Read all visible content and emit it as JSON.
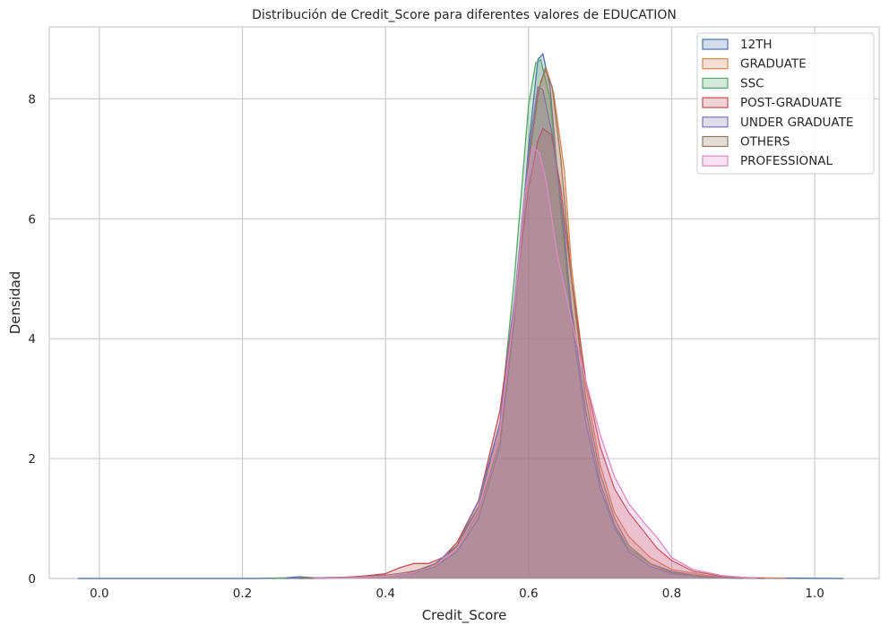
{
  "chart_data": {
    "type": "area",
    "title": "Distribución de Credit_Score para diferentes valores de EDUCATION",
    "xlabel": "Credit_Score",
    "ylabel": "Densidad",
    "xlim": [
      -0.07,
      1.09
    ],
    "ylim": [
      0,
      9.2
    ],
    "xticks": [
      0.0,
      0.2,
      0.4,
      0.6,
      0.8,
      1.0
    ],
    "xtick_labels": [
      "0.0",
      "0.2",
      "0.4",
      "0.6",
      "0.8",
      "1.0"
    ],
    "yticks": [
      0,
      2,
      4,
      6,
      8
    ],
    "ytick_labels": [
      "0",
      "2",
      "4",
      "6",
      "8"
    ],
    "grid": true,
    "legend_position": "top-right",
    "series": [
      {
        "name": "12TH",
        "color": "#4c72b0",
        "points": [
          [
            -0.03,
            0
          ],
          [
            0.22,
            0
          ],
          [
            0.26,
            0.01
          ],
          [
            0.28,
            0.03
          ],
          [
            0.3,
            0.01
          ],
          [
            0.34,
            0.01
          ],
          [
            0.38,
            0.05
          ],
          [
            0.41,
            0.06
          ],
          [
            0.44,
            0.09
          ],
          [
            0.47,
            0.2
          ],
          [
            0.5,
            0.45
          ],
          [
            0.53,
            1.0
          ],
          [
            0.56,
            2.2
          ],
          [
            0.58,
            4.3
          ],
          [
            0.6,
            7.2
          ],
          [
            0.613,
            8.65
          ],
          [
            0.62,
            8.75
          ],
          [
            0.63,
            8.2
          ],
          [
            0.64,
            6.8
          ],
          [
            0.66,
            4.5
          ],
          [
            0.68,
            2.8
          ],
          [
            0.7,
            1.6
          ],
          [
            0.72,
            0.9
          ],
          [
            0.74,
            0.5
          ],
          [
            0.77,
            0.25
          ],
          [
            0.8,
            0.12
          ],
          [
            0.84,
            0.04
          ],
          [
            0.9,
            0.01
          ],
          [
            1.04,
            0
          ]
        ]
      },
      {
        "name": "GRADUATE",
        "color": "#dd8452",
        "points": [
          [
            0.24,
            0
          ],
          [
            0.3,
            0.01
          ],
          [
            0.35,
            0.02
          ],
          [
            0.4,
            0.05
          ],
          [
            0.44,
            0.12
          ],
          [
            0.47,
            0.22
          ],
          [
            0.5,
            0.5
          ],
          [
            0.53,
            1.1
          ],
          [
            0.56,
            2.3
          ],
          [
            0.58,
            4.4
          ],
          [
            0.6,
            7.0
          ],
          [
            0.617,
            8.3
          ],
          [
            0.625,
            8.5
          ],
          [
            0.635,
            8.1
          ],
          [
            0.65,
            6.8
          ],
          [
            0.66,
            5.2
          ],
          [
            0.68,
            3.2
          ],
          [
            0.7,
            1.9
          ],
          [
            0.72,
            1.1
          ],
          [
            0.74,
            0.7
          ],
          [
            0.77,
            0.35
          ],
          [
            0.8,
            0.15
          ],
          [
            0.85,
            0.05
          ],
          [
            0.9,
            0.01
          ],
          [
            0.96,
            0
          ]
        ]
      },
      {
        "name": "SSC",
        "color": "#55a868",
        "points": [
          [
            0.24,
            0
          ],
          [
            0.3,
            0.01
          ],
          [
            0.36,
            0.02
          ],
          [
            0.4,
            0.05
          ],
          [
            0.44,
            0.12
          ],
          [
            0.47,
            0.25
          ],
          [
            0.5,
            0.55
          ],
          [
            0.53,
            1.2
          ],
          [
            0.56,
            2.6
          ],
          [
            0.58,
            5.0
          ],
          [
            0.6,
            7.9
          ],
          [
            0.61,
            8.6
          ],
          [
            0.617,
            8.65
          ],
          [
            0.63,
            8.0
          ],
          [
            0.64,
            6.8
          ],
          [
            0.66,
            4.3
          ],
          [
            0.68,
            2.6
          ],
          [
            0.7,
            1.5
          ],
          [
            0.72,
            0.85
          ],
          [
            0.74,
            0.5
          ],
          [
            0.77,
            0.25
          ],
          [
            0.8,
            0.1
          ],
          [
            0.85,
            0.03
          ],
          [
            0.92,
            0
          ]
        ]
      },
      {
        "name": "POST-GRADUATE",
        "color": "#c44e52",
        "points": [
          [
            0.28,
            0
          ],
          [
            0.33,
            0.01
          ],
          [
            0.37,
            0.04
          ],
          [
            0.4,
            0.08
          ],
          [
            0.42,
            0.18
          ],
          [
            0.44,
            0.25
          ],
          [
            0.46,
            0.25
          ],
          [
            0.48,
            0.35
          ],
          [
            0.5,
            0.6
          ],
          [
            0.53,
            1.3
          ],
          [
            0.56,
            2.8
          ],
          [
            0.58,
            4.6
          ],
          [
            0.6,
            6.5
          ],
          [
            0.613,
            7.3
          ],
          [
            0.62,
            7.5
          ],
          [
            0.632,
            7.4
          ],
          [
            0.645,
            6.5
          ],
          [
            0.66,
            5.0
          ],
          [
            0.68,
            3.3
          ],
          [
            0.7,
            2.2
          ],
          [
            0.72,
            1.5
          ],
          [
            0.74,
            1.1
          ],
          [
            0.76,
            0.8
          ],
          [
            0.78,
            0.5
          ],
          [
            0.8,
            0.3
          ],
          [
            0.83,
            0.12
          ],
          [
            0.87,
            0.04
          ],
          [
            0.93,
            0
          ]
        ]
      },
      {
        "name": "UNDER GRADUATE",
        "color": "#8172b3",
        "points": [
          [
            0.26,
            0
          ],
          [
            0.3,
            0.01
          ],
          [
            0.35,
            0.02
          ],
          [
            0.4,
            0.04
          ],
          [
            0.44,
            0.1
          ],
          [
            0.47,
            0.25
          ],
          [
            0.5,
            0.55
          ],
          [
            0.53,
            1.3
          ],
          [
            0.56,
            2.6
          ],
          [
            0.58,
            4.6
          ],
          [
            0.6,
            7.1
          ],
          [
            0.613,
            8.2
          ],
          [
            0.62,
            8.15
          ],
          [
            0.635,
            7.3
          ],
          [
            0.65,
            5.8
          ],
          [
            0.66,
            4.4
          ],
          [
            0.68,
            2.6
          ],
          [
            0.7,
            1.5
          ],
          [
            0.72,
            0.85
          ],
          [
            0.74,
            0.45
          ],
          [
            0.77,
            0.2
          ],
          [
            0.8,
            0.08
          ],
          [
            0.85,
            0.02
          ],
          [
            0.9,
            0
          ]
        ]
      },
      {
        "name": "OTHERS",
        "color": "#937860",
        "points": [
          [
            0.28,
            0
          ],
          [
            0.33,
            0.01
          ],
          [
            0.38,
            0.03
          ],
          [
            0.42,
            0.08
          ],
          [
            0.45,
            0.15
          ],
          [
            0.48,
            0.3
          ],
          [
            0.5,
            0.55
          ],
          [
            0.53,
            1.2
          ],
          [
            0.56,
            2.5
          ],
          [
            0.58,
            4.4
          ],
          [
            0.6,
            6.9
          ],
          [
            0.613,
            8.1
          ],
          [
            0.623,
            8.5
          ],
          [
            0.633,
            8.2
          ],
          [
            0.645,
            7.0
          ],
          [
            0.66,
            5.0
          ],
          [
            0.68,
            3.0
          ],
          [
            0.7,
            1.75
          ],
          [
            0.72,
            1.0
          ],
          [
            0.74,
            0.55
          ],
          [
            0.77,
            0.25
          ],
          [
            0.8,
            0.1
          ],
          [
            0.85,
            0.03
          ],
          [
            0.92,
            0
          ]
        ]
      },
      {
        "name": "PROFESSIONAL",
        "color": "#da8bc3",
        "points": [
          [
            0.3,
            0
          ],
          [
            0.35,
            0.01
          ],
          [
            0.4,
            0.04
          ],
          [
            0.44,
            0.1
          ],
          [
            0.47,
            0.22
          ],
          [
            0.5,
            0.5
          ],
          [
            0.53,
            1.15
          ],
          [
            0.56,
            2.5
          ],
          [
            0.58,
            4.5
          ],
          [
            0.595,
            6.4
          ],
          [
            0.605,
            7.2
          ],
          [
            0.615,
            7.1
          ],
          [
            0.625,
            6.6
          ],
          [
            0.64,
            5.4
          ],
          [
            0.66,
            4.3
          ],
          [
            0.68,
            3.3
          ],
          [
            0.7,
            2.4
          ],
          [
            0.72,
            1.7
          ],
          [
            0.74,
            1.25
          ],
          [
            0.76,
            0.95
          ],
          [
            0.78,
            0.68
          ],
          [
            0.8,
            0.35
          ],
          [
            0.83,
            0.15
          ],
          [
            0.87,
            0.05
          ],
          [
            0.92,
            0
          ]
        ]
      }
    ]
  }
}
